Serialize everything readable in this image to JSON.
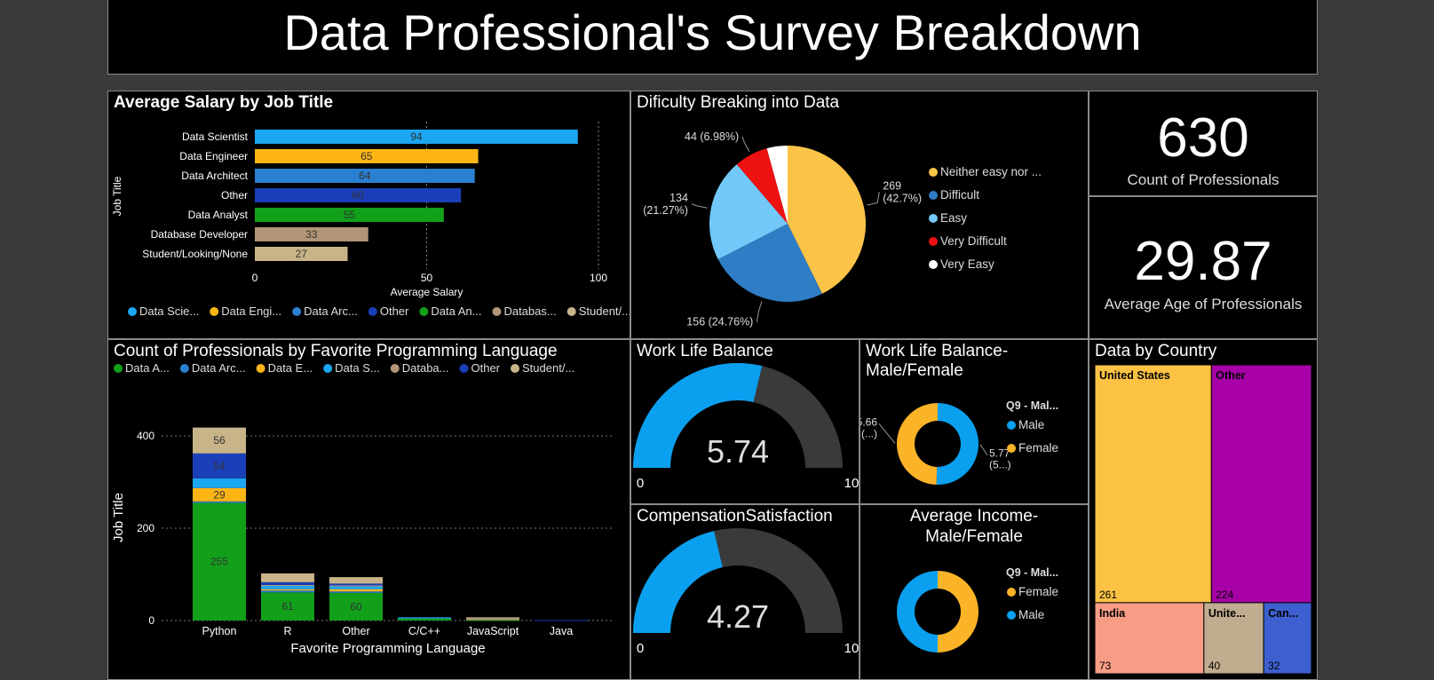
{
  "header": {
    "title": "Data Professional's Survey Breakdown"
  },
  "colors": {
    "data_scientist": "#1ba6f2",
    "data_engineer": "#fdb515",
    "data_architect": "#2a7fd0",
    "other": "#1a3fb8",
    "data_analyst": "#12a01a",
    "database_developer": "#b29576",
    "student": "#c9b48a",
    "neither": "#fbc447",
    "difficult": "#2f7dc4",
    "easy": "#72c8f8",
    "very_difficult": "#ee1111",
    "very_easy": "#ffffff",
    "gauge_fill": "#0aa0ef",
    "gauge_track": "#3a3a3a",
    "male": "#0aa0ef",
    "female": "#fbb427",
    "tm_us": "#fcc244",
    "tm_other": "#a700a7",
    "tm_india": "#f79d86",
    "tm_uk": "#c0ac8e",
    "tm_canada": "#3d5fcf"
  },
  "salary_panel": {
    "title": "Average Salary by Job Title",
    "chart_data": {
      "type": "bar",
      "orientation": "horizontal",
      "categories": [
        "Data Scientist",
        "Data Engineer",
        "Data Architect",
        "Other",
        "Data Analyst",
        "Database Developer",
        "Student/Looking/None"
      ],
      "values": [
        94,
        65,
        64,
        60,
        55,
        33,
        27
      ],
      "value_labels": [
        "94",
        "65",
        "64",
        "60",
        "55",
        "33",
        "27"
      ],
      "color_keys": [
        "data_scientist",
        "data_engineer",
        "data_architect",
        "other",
        "data_analyst",
        "database_developer",
        "student"
      ],
      "xlabel": "Average Salary",
      "ylabel": "Job Title",
      "xlim": [
        0,
        100
      ],
      "xticks": [
        "0",
        "50",
        "100"
      ],
      "grid": "vertical dotted",
      "legend": {
        "position": "bottom",
        "items": [
          "Data Scie...",
          "Data Engi...",
          "Data Arc...",
          "Other",
          "Data An...",
          "Databas...",
          "Student/..."
        ]
      }
    }
  },
  "difficulty_panel": {
    "title": "Dificulty Breaking into Data",
    "chart_data": {
      "type": "pie",
      "labels": [
        "Neither easy nor ...",
        "Difficult",
        "Easy",
        "Very Difficult",
        "Very Easy"
      ],
      "values": [
        269,
        156,
        134,
        44,
        27
      ],
      "color_keys": [
        "neither",
        "difficult",
        "easy",
        "very_difficult",
        "very_easy"
      ],
      "slice_labels": [
        [
          "269",
          "(42.7%)"
        ],
        [
          "156 (24.76%)"
        ],
        [
          "134",
          "(21.27%)"
        ],
        [
          "44 (6.98%)"
        ]
      ],
      "legend": {
        "position": "right"
      }
    }
  },
  "kpi_count": {
    "value": "630",
    "label": "Count of Professionals"
  },
  "kpi_age": {
    "value": "29.87",
    "label": "Average Age of Professionals"
  },
  "language_panel": {
    "title": "Count of Professionals by Favorite Programming Language",
    "chart_data": {
      "type": "bar",
      "stacked": true,
      "categories": [
        "Python",
        "R",
        "Other",
        "C/C++",
        "JavaScript",
        "Java"
      ],
      "series": [
        {
          "name": "Data A...",
          "color_key": "data_analyst",
          "values": [
            255,
            61,
            60,
            5,
            1,
            0
          ]
        },
        {
          "name": "Data Arc...",
          "color_key": "data_architect",
          "values": [
            3,
            4,
            3,
            1,
            0,
            0
          ]
        },
        {
          "name": "Data E...",
          "color_key": "data_engineer",
          "values": [
            29,
            3,
            5,
            0,
            0,
            0
          ]
        },
        {
          "name": "Data S...",
          "color_key": "data_scientist",
          "values": [
            21,
            8,
            6,
            1,
            0,
            0
          ]
        },
        {
          "name": "Databa...",
          "color_key": "database_developer",
          "values": [
            0,
            1,
            2,
            0,
            4,
            0
          ]
        },
        {
          "name": "Other",
          "color_key": "other",
          "values": [
            54,
            6,
            4,
            0,
            0,
            1
          ]
        },
        {
          "name": "Student/...",
          "color_key": "student",
          "values": [
            56,
            19,
            14,
            0,
            2,
            0
          ]
        }
      ],
      "data_labels": [
        {
          "category": "Python",
          "series": "Data A...",
          "text": "255"
        },
        {
          "category": "Python",
          "series": "Data E...",
          "text": "29"
        },
        {
          "category": "Python",
          "series": "Other",
          "text": "54"
        },
        {
          "category": "Python",
          "series": "Student/...",
          "text": "56"
        },
        {
          "category": "R",
          "series": "Data A...",
          "text": "61"
        },
        {
          "category": "Other",
          "series": "Data A...",
          "text": "60"
        }
      ],
      "xlabel": "Favorite Programming Language",
      "ylabel": "Job Title",
      "ylim": [
        0,
        420
      ],
      "yticks": [
        "0",
        "200",
        "400"
      ],
      "grid": "horizontal dotted",
      "legend": {
        "position": "top"
      }
    }
  },
  "wlb_panel": {
    "title": "Work Life Balance",
    "chart_data": {
      "type": "gauge",
      "value": 5.74,
      "min": 0,
      "max": 10
    },
    "value_label": "5.74",
    "min_label": "0",
    "max_label": "10"
  },
  "comp_panel": {
    "title": "CompensationSatisfaction",
    "chart_data": {
      "type": "gauge",
      "value": 4.27,
      "min": 0,
      "max": 10
    },
    "value_label": "4.27",
    "min_label": "0",
    "max_label": "10"
  },
  "wlb_gender_panel": {
    "title_lines": [
      "Work Life Balance-",
      "Male/Female"
    ],
    "legend_title": "Q9 - Mal...",
    "chart_data": {
      "type": "pie",
      "donut": true,
      "labels": [
        "Male",
        "Female"
      ],
      "values": [
        5.77,
        5.66
      ],
      "color_keys": [
        "male",
        "female"
      ],
      "slice_labels": [
        [
          "5.77",
          "(5...)"
        ],
        [
          "5.66",
          "(...)"
        ]
      ]
    }
  },
  "income_gender_panel": {
    "title_lines": [
      "Average Income-",
      "Male/Female"
    ],
    "legend_title": "Q9 - Mal...",
    "chart_data": {
      "type": "pie",
      "donut": true,
      "labels": [
        "Female",
        "Male"
      ],
      "values": [
        50,
        50
      ],
      "color_keys": [
        "female",
        "male"
      ]
    }
  },
  "country_panel": {
    "title": "Data by Country",
    "chart_data": {
      "type": "treemap",
      "labels": [
        "United States",
        "Other",
        "India",
        "Unite...",
        "Can..."
      ],
      "values": [
        261,
        224,
        73,
        40,
        32
      ],
      "value_labels": [
        "261",
        "224",
        "73",
        "40",
        "32"
      ],
      "color_keys": [
        "tm_us",
        "tm_other",
        "tm_india",
        "tm_uk",
        "tm_canada"
      ]
    }
  }
}
